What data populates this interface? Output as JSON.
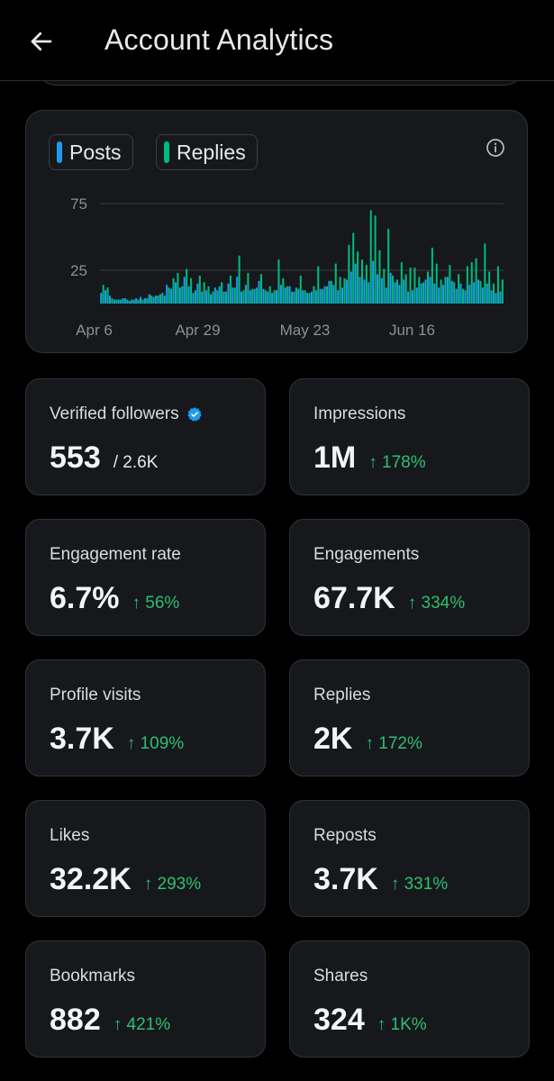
{
  "header": {
    "title": "Account Analytics"
  },
  "chart": {
    "legend": [
      {
        "label": "Posts",
        "color": "#1d9bf0"
      },
      {
        "label": "Replies",
        "color": "#00ba7c"
      }
    ]
  },
  "chart_data": {
    "type": "bar",
    "title": "",
    "xlabel": "",
    "ylabel": "",
    "y_ticks": [
      25,
      75
    ],
    "ylim": [
      0,
      80
    ],
    "x_tick_labels": [
      "Apr 6",
      "Apr 29",
      "May 23",
      "Jun 16"
    ],
    "grid": true,
    "series": [
      {
        "name": "Posts",
        "color": "#1d9bf0",
        "values": [
          8,
          10,
          6,
          3,
          3,
          4,
          3,
          3,
          4,
          5,
          4,
          7,
          5,
          6,
          8,
          14,
          11,
          16,
          12,
          20,
          13,
          8,
          15,
          9,
          10,
          7,
          12,
          13,
          9,
          15,
          12,
          20,
          9,
          14,
          10,
          11,
          17,
          11,
          9,
          8,
          10,
          14,
          12,
          13,
          9,
          11,
          10,
          8,
          9,
          10,
          11,
          13,
          17,
          14,
          10,
          12,
          18,
          24,
          30,
          20,
          18,
          16,
          32,
          22,
          19,
          12,
          23,
          16,
          14,
          18,
          9,
          10,
          12,
          15,
          18,
          20,
          15,
          12,
          14,
          20,
          17,
          11,
          15,
          10,
          14,
          16,
          18,
          12,
          15,
          10,
          8,
          9
        ]
      },
      {
        "name": "Replies",
        "color": "#00ba7c",
        "values": [
          14,
          12,
          4,
          3,
          3,
          4,
          2,
          3,
          3,
          3,
          4,
          6,
          6,
          7,
          6,
          12,
          19,
          23,
          13,
          26,
          19,
          10,
          21,
          16,
          13,
          9,
          10,
          16,
          9,
          21,
          12,
          36,
          10,
          23,
          11,
          12,
          22,
          10,
          13,
          10,
          33,
          19,
          13,
          9,
          12,
          21,
          10,
          8,
          13,
          28,
          11,
          13,
          17,
          30,
          20,
          19,
          44,
          53,
          39,
          33,
          29,
          70,
          66,
          40,
          26,
          56,
          21,
          18,
          31,
          22,
          27,
          27,
          20,
          16,
          24,
          42,
          30,
          18,
          20,
          29,
          16,
          22,
          11,
          28,
          31,
          34,
          17,
          45,
          24,
          15,
          28,
          18
        ]
      }
    ]
  },
  "stats": [
    {
      "label": "Verified followers",
      "value": "553",
      "sub": "/ 2.6K",
      "change": ""
    },
    {
      "label": "Impressions",
      "value": "1M",
      "sub": "",
      "change": "↑ 178%"
    },
    {
      "label": "Engagement rate",
      "value": "6.7%",
      "sub": "",
      "change": "↑ 56%"
    },
    {
      "label": "Engagements",
      "value": "67.7K",
      "sub": "",
      "change": "↑ 334%"
    },
    {
      "label": "Profile visits",
      "value": "3.7K",
      "sub": "",
      "change": "↑ 109%"
    },
    {
      "label": "Replies",
      "value": "2K",
      "sub": "",
      "change": "↑ 172%"
    },
    {
      "label": "Likes",
      "value": "32.2K",
      "sub": "",
      "change": "↑ 293%"
    },
    {
      "label": "Reposts",
      "value": "3.7K",
      "sub": "",
      "change": "↑ 331%"
    },
    {
      "label": "Bookmarks",
      "value": "882",
      "sub": "",
      "change": "↑ 421%"
    },
    {
      "label": "Shares",
      "value": "324",
      "sub": "",
      "change": "↑ 1K%"
    }
  ],
  "colors": {
    "background": "#000000",
    "card": "#16181c",
    "positive": "#2fbf71",
    "verified": "#1d9bf0"
  },
  "icons": {
    "back": "arrow-left-icon",
    "info": "info-circle-icon",
    "verified": "verified-badge-icon"
  }
}
